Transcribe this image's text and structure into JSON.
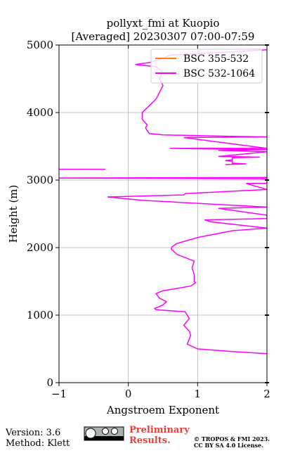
{
  "chart_data": {
    "type": "line",
    "title": "pollyxt_fmi at Kuopio",
    "subtitle": "[Averaged] 20230307 07:00-07:59",
    "x_label": "Angstroem Exponent",
    "y_label": "Height (m)",
    "xlim": [
      -1,
      2
    ],
    "xticks": [
      {
        "value": -1,
        "label": "−1"
      },
      0,
      1,
      2
    ],
    "ylim": [
      0,
      5000
    ],
    "yticks": [
      0,
      1000,
      2000,
      3000,
      4000,
      5000
    ],
    "grid": true,
    "legend": "upper right",
    "series": [
      {
        "name": "BSC 355-532",
        "color": "#ff7f0e",
        "heights": [],
        "values": []
      },
      {
        "name": "BSC 532-1064",
        "color": "#ff00ff",
        "heights": [
          430,
          460,
          500,
          570,
          700,
          760,
          850,
          950,
          1050,
          1080,
          1100,
          1150,
          1200,
          1250,
          1320,
          1360,
          1430,
          1480,
          1500,
          1600,
          1700,
          1800,
          1900,
          1980,
          2010,
          2060,
          2150,
          2250,
          2290,
          2380,
          2410,
          2430,
          2480,
          2580,
          2600,
          2700,
          2750,
          2780,
          2800,
          2860,
          2950,
          2950,
          3020,
          3030,
          3040,
          3150,
          3160,
          3160,
          3200,
          3230,
          3240,
          3250,
          3280,
          3290,
          3300,
          3330,
          3340,
          3350,
          3420,
          3440,
          3450,
          3470,
          3470,
          3630,
          3640,
          3650,
          3670,
          3690,
          3770,
          3820,
          3900,
          4000,
          4100,
          4200,
          4300,
          4400,
          4500,
          4600,
          4680,
          4710,
          4740,
          4800,
          4850,
          4900,
          4930
        ],
        "values": [
          2.0,
          1.5,
          1.0,
          0.85,
          0.9,
          0.88,
          0.8,
          0.88,
          0.82,
          0.4,
          0.38,
          0.5,
          0.55,
          0.45,
          0.4,
          0.5,
          0.9,
          0.97,
          0.95,
          0.95,
          0.92,
          0.95,
          0.7,
          0.62,
          0.63,
          0.7,
          1.0,
          1.5,
          2.0,
          1.2,
          1.1,
          2.0,
          2.0,
          1.3,
          2.0,
          0.2,
          -0.3,
          0.8,
          0.82,
          2.0,
          1.7,
          2.0,
          2.0,
          -1.0,
          2.0,
          null,
          -1.0,
          -0.33,
          null,
          1.4,
          1.7,
          1.5,
          1.5,
          1.4,
          1.5,
          1.5,
          1.9,
          1.3,
          2.0,
          1.3,
          2.0,
          0.6,
          2.0,
          0.8,
          2.0,
          1.4,
          0.5,
          0.3,
          0.25,
          0.27,
          0.2,
          0.2,
          0.3,
          0.4,
          0.45,
          0.5,
          0.45,
          0.5,
          0.4,
          0.1,
          0.3,
          0.5,
          0.6,
          1.5,
          2.0
        ]
      }
    ]
  },
  "footer": {
    "version": "Version: 3.6",
    "method": "Method: Klett",
    "preliminary": "Preliminary",
    "results": "Results.",
    "copyright": "© TROPOS & FMI 2023.",
    "license": "CC BY SA 4.0 License."
  }
}
